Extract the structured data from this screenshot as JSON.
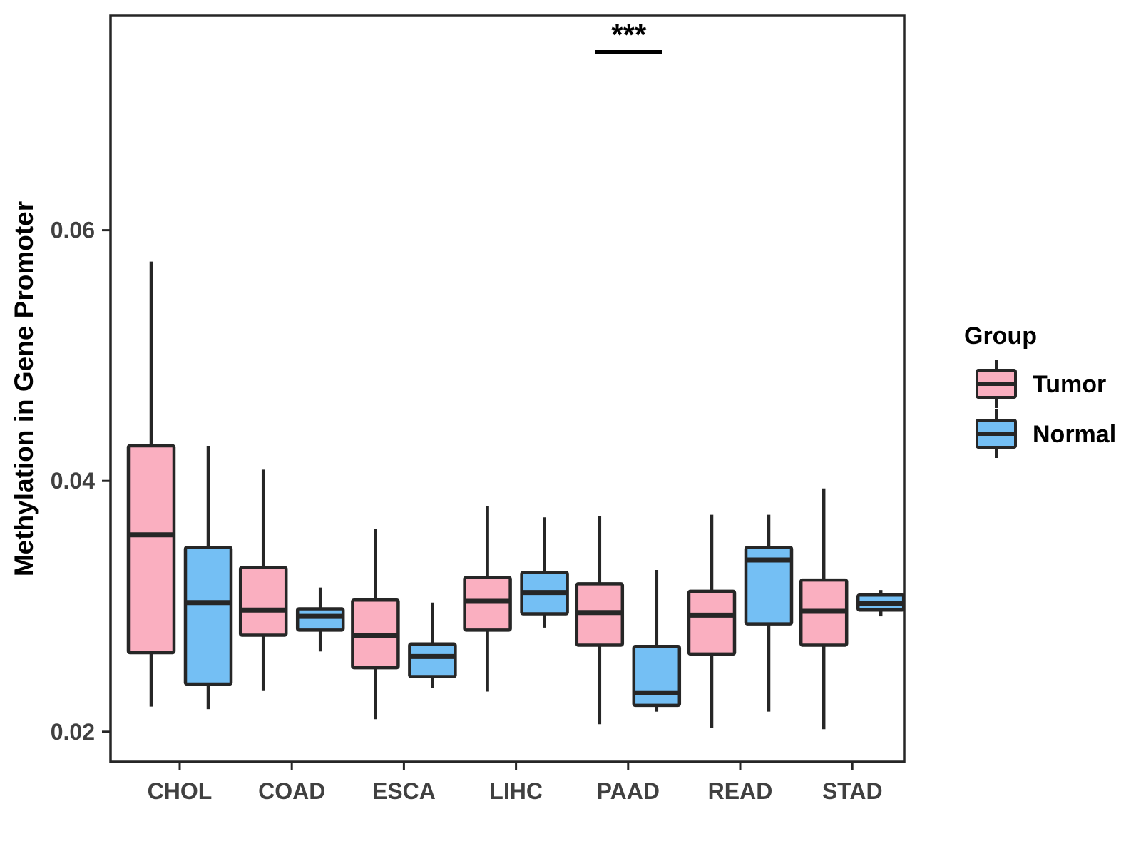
{
  "chart_data": {
    "type": "boxplot",
    "title": "",
    "xlabel": "",
    "ylabel": "Methylation in Gene Promoter",
    "categories": [
      "CHOL",
      "COAD",
      "ESCA",
      "LIHC",
      "PAAD",
      "READ",
      "STAD"
    ],
    "yticks": [
      0.02,
      0.04,
      0.06
    ],
    "ylim": [
      0.0176,
      0.0771
    ],
    "grid": false,
    "legend": {
      "title": "Group",
      "position": "right",
      "entries": [
        {
          "label": "Tumor",
          "fill": "#FAAFC0"
        },
        {
          "label": "Normal",
          "fill": "#74BFF4"
        }
      ]
    },
    "series": [
      {
        "name": "Tumor",
        "fill": "#FAAFC0",
        "boxes": [
          {
            "category": "CHOL",
            "whisker_low": 0.022,
            "q1": 0.0263,
            "median": 0.0357,
            "q3": 0.0428,
            "whisker_high": 0.0575
          },
          {
            "category": "COAD",
            "whisker_low": 0.0233,
            "q1": 0.0277,
            "median": 0.0297,
            "q3": 0.0331,
            "whisker_high": 0.0409
          },
          {
            "category": "ESCA",
            "whisker_low": 0.021,
            "q1": 0.0251,
            "median": 0.0277,
            "q3": 0.0305,
            "whisker_high": 0.0362
          },
          {
            "category": "LIHC",
            "whisker_low": 0.0232,
            "q1": 0.0281,
            "median": 0.0304,
            "q3": 0.0323,
            "whisker_high": 0.038
          },
          {
            "category": "PAAD",
            "whisker_low": 0.0206,
            "q1": 0.0269,
            "median": 0.0295,
            "q3": 0.0318,
            "whisker_high": 0.0372
          },
          {
            "category": "READ",
            "whisker_low": 0.0203,
            "q1": 0.0262,
            "median": 0.0293,
            "q3": 0.0312,
            "whisker_high": 0.0373
          },
          {
            "category": "STAD",
            "whisker_low": 0.0202,
            "q1": 0.0269,
            "median": 0.0296,
            "q3": 0.0321,
            "whisker_high": 0.0394
          }
        ]
      },
      {
        "name": "Normal",
        "fill": "#74BFF4",
        "boxes": [
          {
            "category": "CHOL",
            "whisker_low": 0.0218,
            "q1": 0.0238,
            "median": 0.0303,
            "q3": 0.0347,
            "whisker_high": 0.0428
          },
          {
            "category": "COAD",
            "whisker_low": 0.0264,
            "q1": 0.0281,
            "median": 0.0292,
            "q3": 0.0298,
            "whisker_high": 0.0315
          },
          {
            "category": "ESCA",
            "whisker_low": 0.0235,
            "q1": 0.0244,
            "median": 0.026,
            "q3": 0.027,
            "whisker_high": 0.0303
          },
          {
            "category": "LIHC",
            "whisker_low": 0.0283,
            "q1": 0.0294,
            "median": 0.0311,
            "q3": 0.0327,
            "whisker_high": 0.0371
          },
          {
            "category": "PAAD",
            "whisker_low": 0.0216,
            "q1": 0.0221,
            "median": 0.0231,
            "q3": 0.0268,
            "whisker_high": 0.0329
          },
          {
            "category": "READ",
            "whisker_low": 0.0216,
            "q1": 0.0286,
            "median": 0.0337,
            "q3": 0.0347,
            "whisker_high": 0.0373
          },
          {
            "category": "STAD",
            "whisker_low": 0.0292,
            "q1": 0.0297,
            "median": 0.0302,
            "q3": 0.0309,
            "whisker_high": 0.0313
          }
        ]
      }
    ],
    "annotations": [
      {
        "label": "***",
        "category": "PAAD",
        "line_y": 0.0742
      }
    ]
  },
  "style": {
    "stroke": "#262626",
    "axis_text_color": "#404040",
    "title_text_color": "#000000",
    "background": "#ffffff"
  }
}
